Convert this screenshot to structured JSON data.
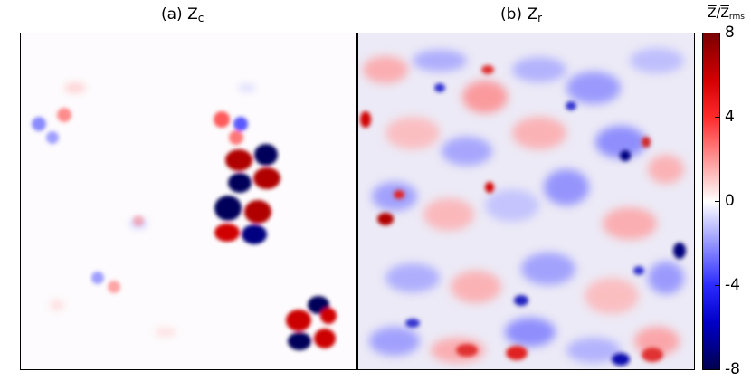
{
  "panels": [
    {
      "id": "a",
      "label": "(a) ",
      "var": "Z",
      "sub": "c"
    },
    {
      "id": "b",
      "label": "(b) ",
      "var": "Z",
      "sub": "r"
    }
  ],
  "colorbar": {
    "label_var": "Z",
    "label_sep": "/",
    "label_var2": "Z",
    "label_sub": "rms",
    "ticks": [
      "8",
      "4",
      "0",
      "-4",
      "-8"
    ],
    "range": [
      -8,
      8
    ],
    "colors": {
      "max": "#7a0000",
      "mid": "#ffffff",
      "min": "#000050"
    }
  }
}
